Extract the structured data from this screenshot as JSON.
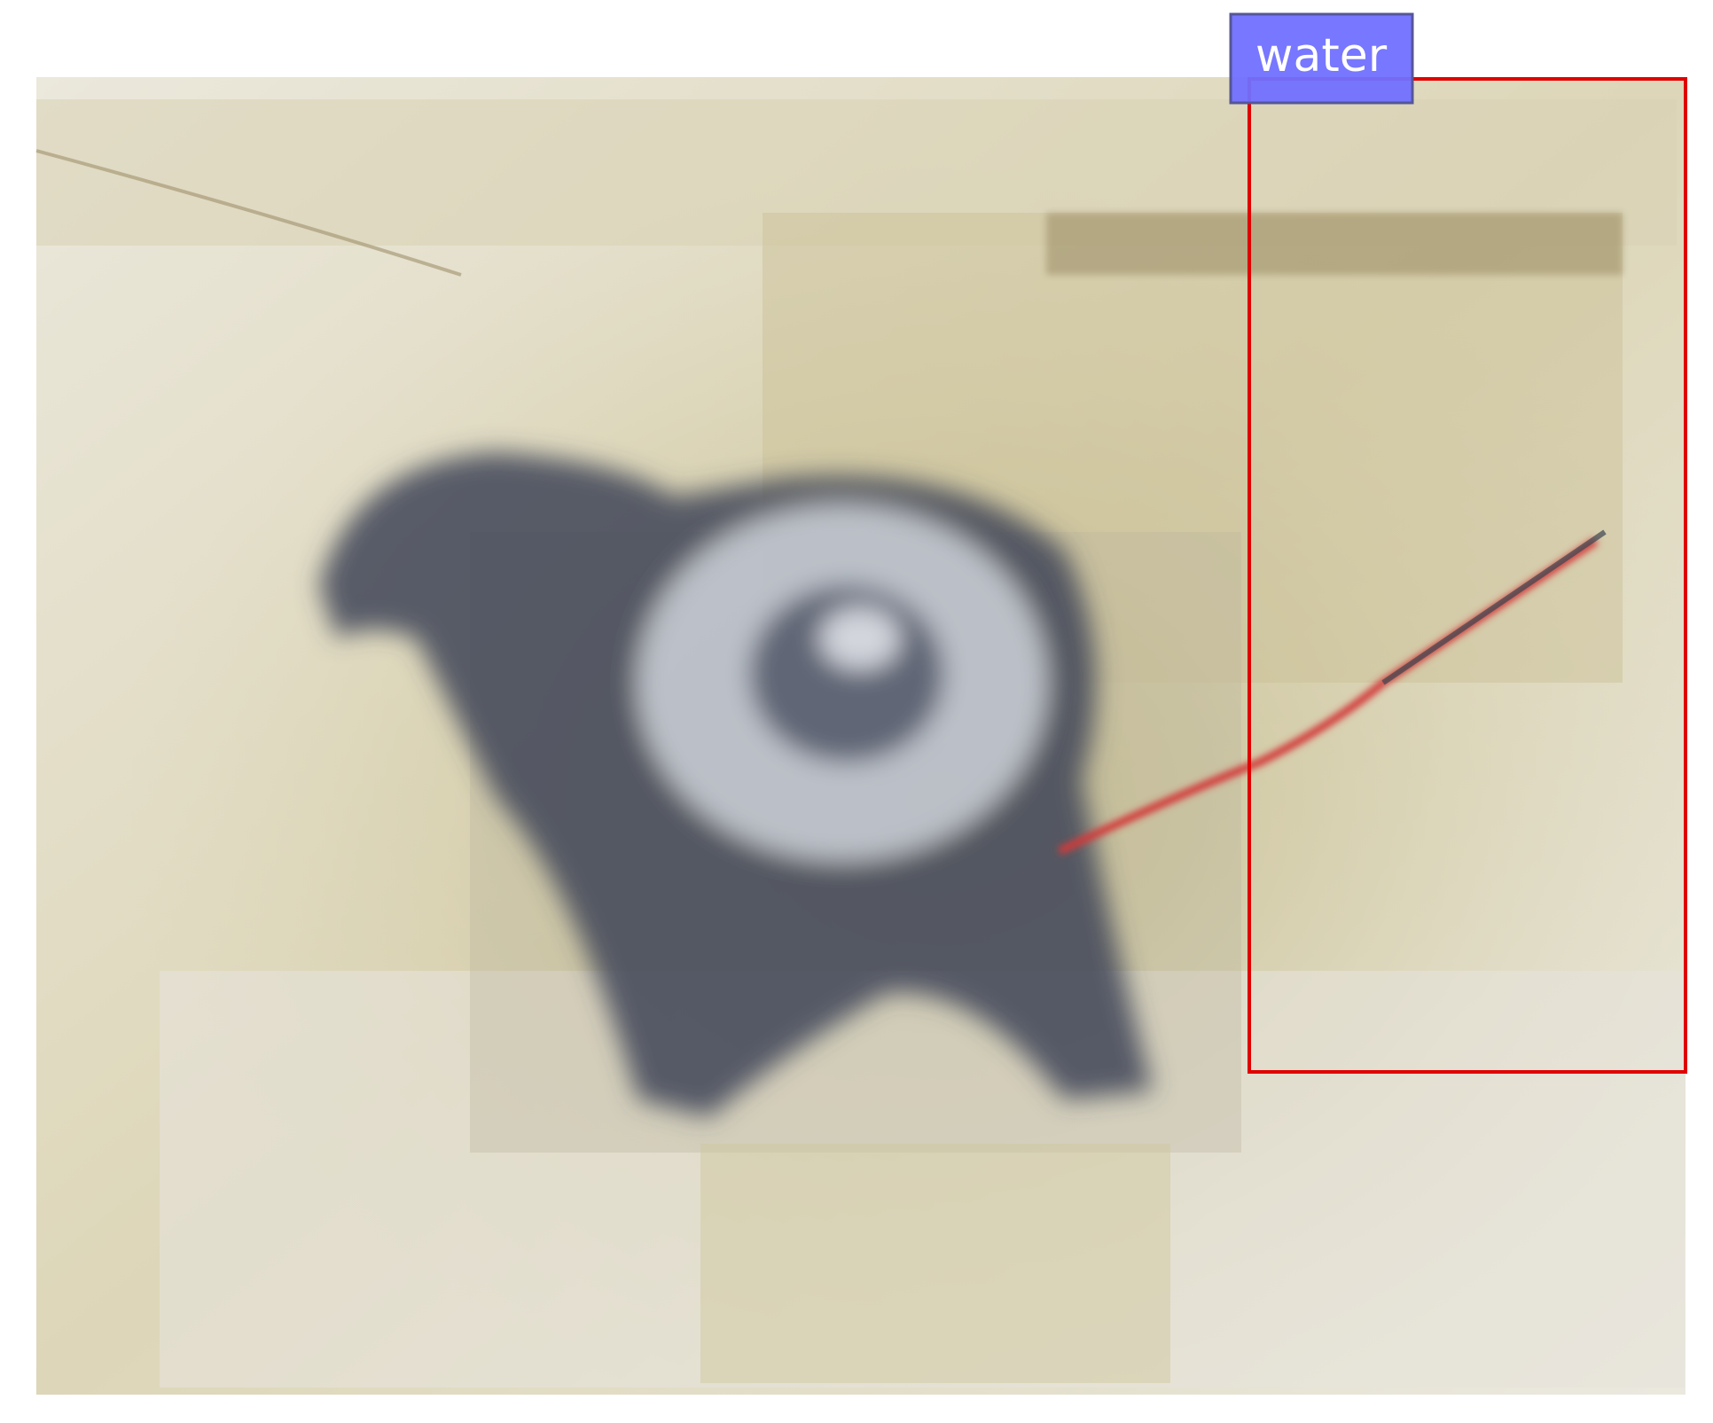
{
  "annotations": [
    {
      "label": "water"
    }
  ]
}
